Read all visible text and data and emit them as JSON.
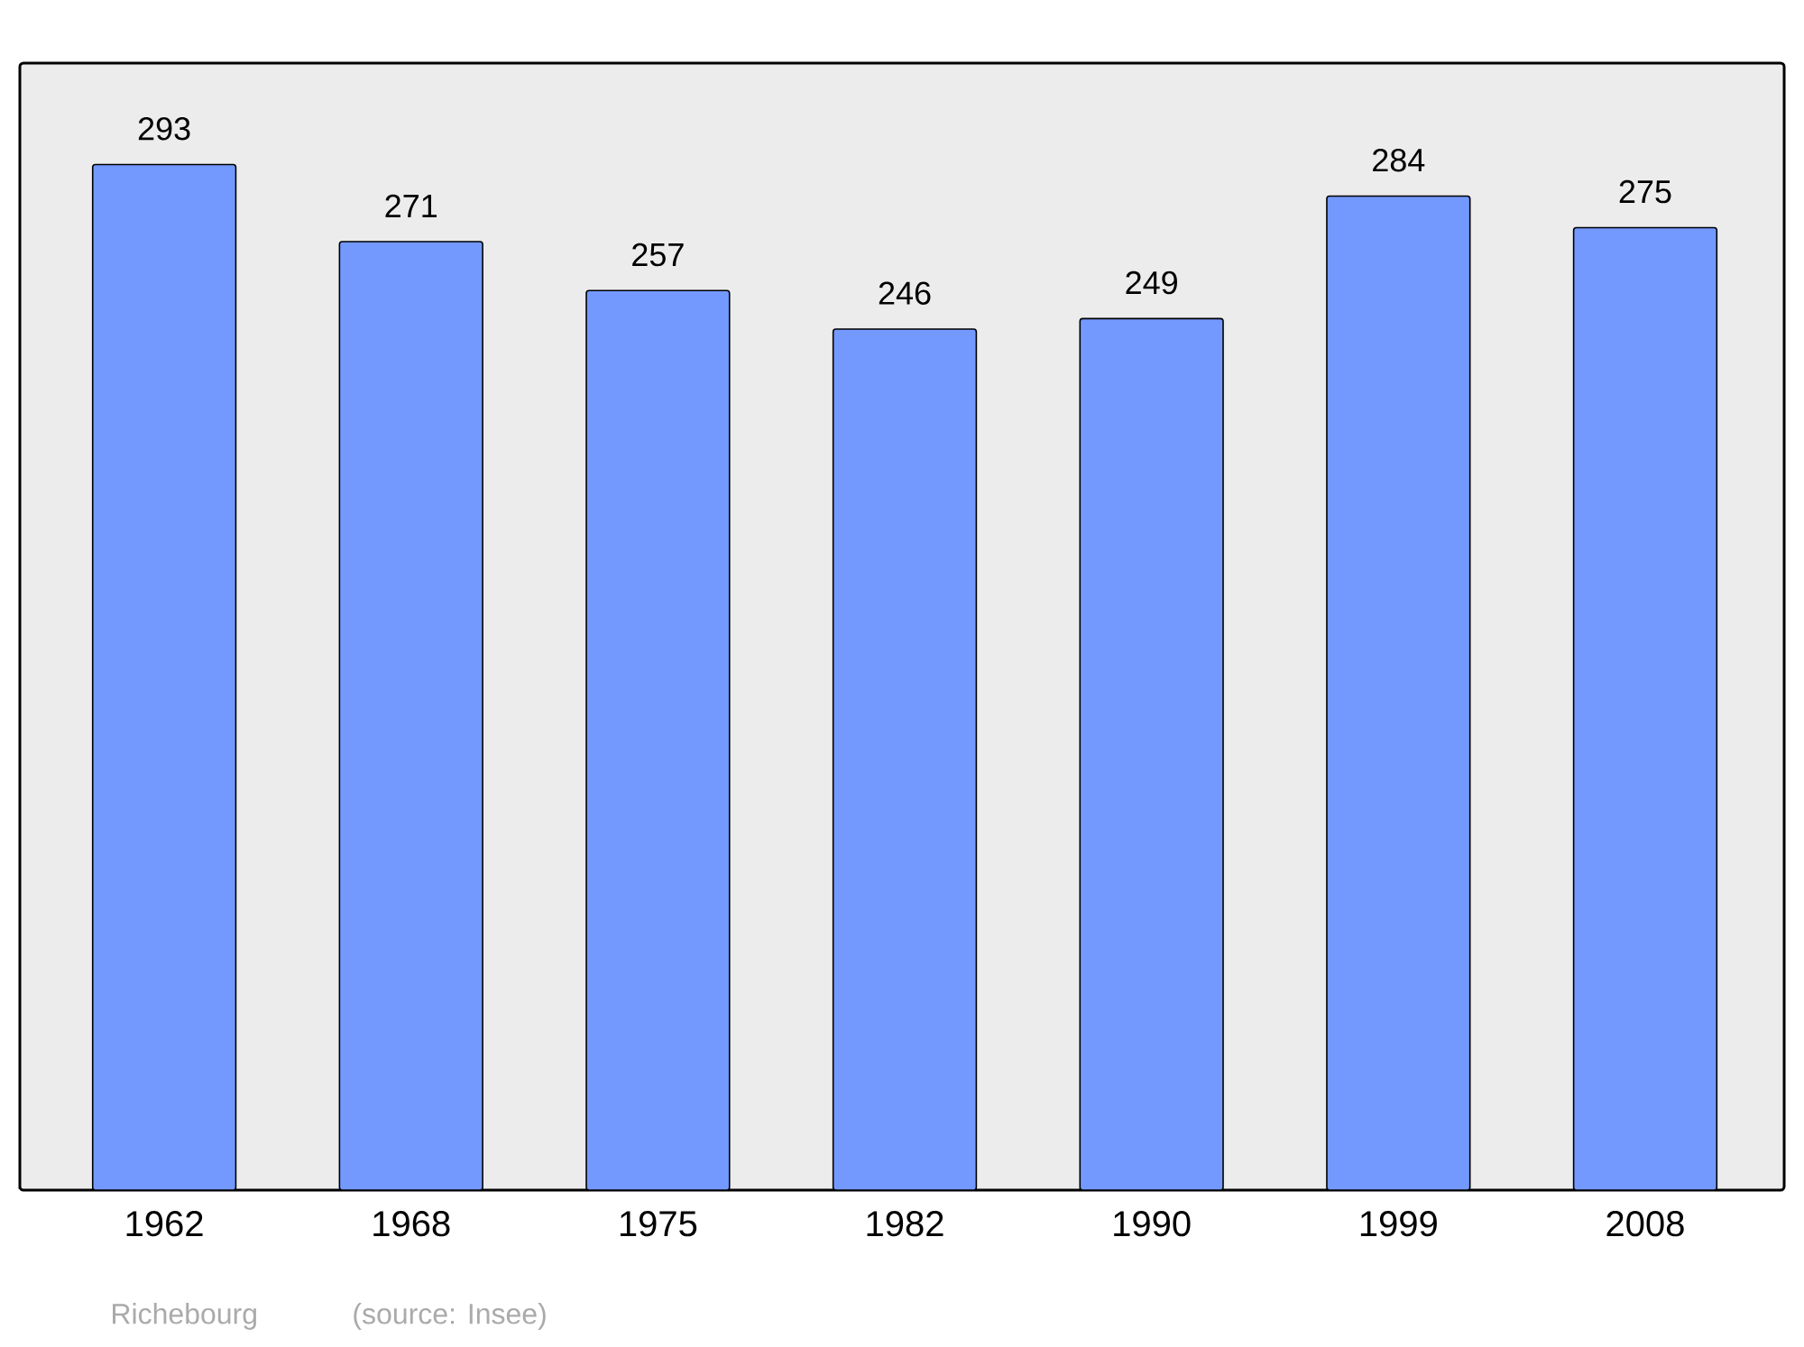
{
  "chart_data": {
    "type": "bar",
    "categories": [
      "1962",
      "1968",
      "1975",
      "1982",
      "1990",
      "1999",
      "2008"
    ],
    "values": [
      293,
      271,
      257,
      246,
      249,
      284,
      275
    ],
    "color": "#7399ff",
    "ylim": [
      0,
      322
    ],
    "data_labels": true,
    "tick_labels": "x",
    "annotations": [
      "Richebourg",
      "(source: Insee)"
    ]
  }
}
